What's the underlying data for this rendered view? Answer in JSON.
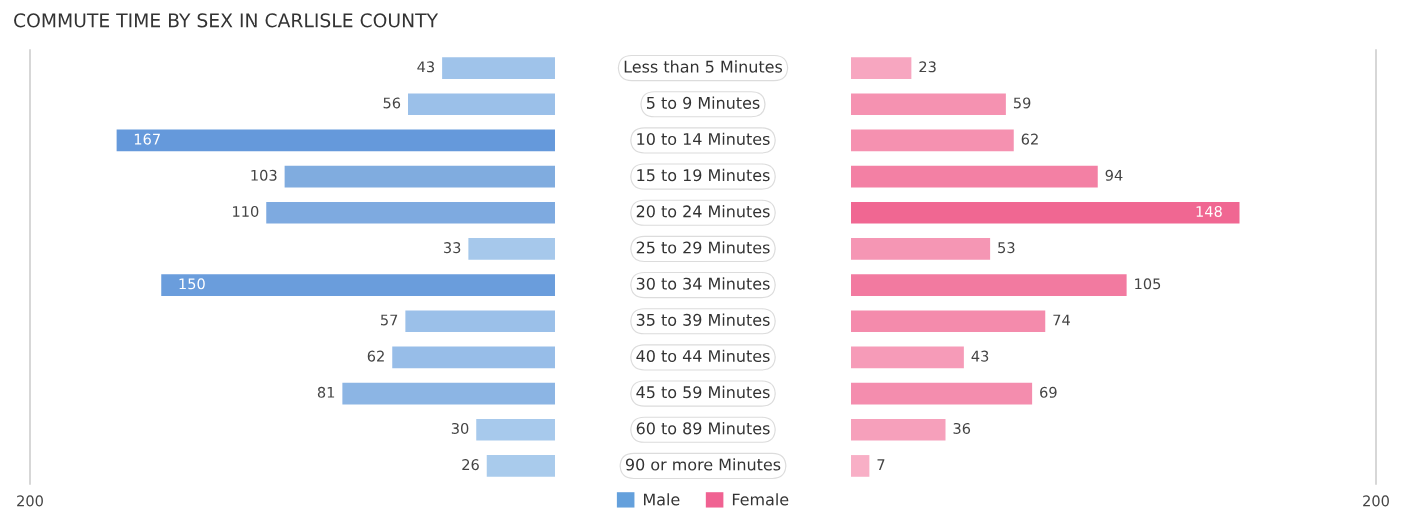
{
  "chart_data": [
    {
      "type": "bar",
      "orientation": "horizontal",
      "title": "COMMUTE TIME BY SEX IN CARLISLE COUNTY",
      "categories": [
        "Less than 5 Minutes",
        "5 to 9 Minutes",
        "10 to 14 Minutes",
        "15 to 19 Minutes",
        "20 to 24 Minutes",
        "25 to 29 Minutes",
        "30 to 34 Minutes",
        "35 to 39 Minutes",
        "40 to 44 Minutes",
        "45 to 59 Minutes",
        "60 to 89 Minutes",
        "90 or more Minutes"
      ],
      "series": [
        {
          "name": "Male",
          "color": "#64a0dc",
          "colors": [
            "#9fc3ea",
            "#9bc0e9",
            "#6599db",
            "#80acdf",
            "#7eaae0",
            "#a6c8eb",
            "#6a9ddc",
            "#9bc0e9",
            "#97bde8",
            "#8cb5e4",
            "#a7c9ec",
            "#a9cbec"
          ],
          "values": [
            43,
            56,
            167,
            103,
            110,
            33,
            150,
            57,
            62,
            81,
            30,
            26
          ]
        }
      ],
      "xlim": [
        200,
        0
      ],
      "xticks": [
        200
      ],
      "legend": "bottom",
      "data_labels": true
    },
    {
      "type": "bar",
      "orientation": "horizontal",
      "categories": [
        "Less than 5 Minutes",
        "5 to 9 Minutes",
        "10 to 14 Minutes",
        "15 to 19 Minutes",
        "20 to 24 Minutes",
        "25 to 29 Minutes",
        "30 to 34 Minutes",
        "35 to 39 Minutes",
        "40 to 44 Minutes",
        "45 to 59 Minutes",
        "60 to 89 Minutes",
        "90 or more Minutes"
      ],
      "series": [
        {
          "name": "Female",
          "color": "#f06292",
          "colors": [
            "#f7a6c0",
            "#f592b1",
            "#f591b0",
            "#f380a4",
            "#f06792",
            "#f596b4",
            "#f27aa0",
            "#f48bac",
            "#f69bb8",
            "#f48dae",
            "#f6a0bb",
            "#f8afc6"
          ],
          "values": [
            23,
            59,
            62,
            94,
            148,
            53,
            105,
            74,
            43,
            69,
            36,
            7
          ]
        }
      ],
      "xlim": [
        0,
        200
      ],
      "xticks": [
        200
      ],
      "legend": "bottom",
      "data_labels": true,
      "tick_labels": "x"
    }
  ]
}
